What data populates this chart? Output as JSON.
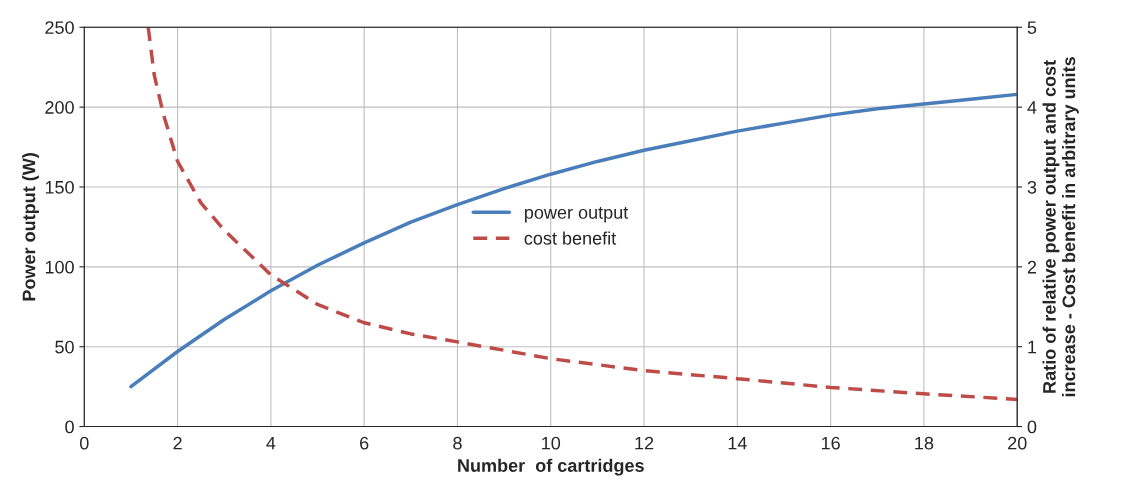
{
  "chart_data": {
    "type": "line",
    "xlabel": "Number  of cartridges",
    "ylabel": "Power output (W)",
    "y2label": "Ratio of relative power output and cost\nincrease - Cost benefit in arbitrary units",
    "xlim": [
      0,
      20
    ],
    "xticks": [
      0,
      2,
      4,
      6,
      8,
      10,
      12,
      14,
      16,
      18,
      20
    ],
    "ylim": [
      0,
      250
    ],
    "yticks": [
      0,
      50,
      100,
      150,
      200,
      250
    ],
    "y2lim": [
      0,
      5
    ],
    "y2ticks": [
      0,
      1,
      2,
      3,
      4,
      5
    ],
    "grid": true,
    "legend": "center",
    "marker": "none",
    "series": [
      {
        "name": "power output",
        "color": "#4a7ebb",
        "line_style": "solid",
        "x": [
          1,
          2,
          3,
          4,
          5,
          6,
          7,
          8,
          9,
          10,
          11,
          12,
          13,
          14,
          15,
          16,
          17,
          18,
          19,
          20
        ],
        "values": [
          25,
          47,
          67,
          85,
          101,
          115,
          128,
          139,
          149,
          158,
          166,
          173,
          179,
          185,
          190,
          195,
          199,
          202,
          205,
          208
        ]
      },
      {
        "name": "cost benefit",
        "color": "#be4b48",
        "line_style": "dashed",
        "axis": "y2",
        "x": [
          1.37,
          1.5,
          1.7,
          2,
          2.5,
          3,
          4,
          5,
          6,
          7,
          8,
          10,
          12,
          14,
          16,
          18,
          20
        ],
        "values": [
          5,
          4.4,
          3.9,
          3.32,
          2.8,
          2.46,
          1.9,
          1.53,
          1.3,
          1.16,
          1.06,
          0.85,
          0.7,
          0.6,
          0.49,
          0.41,
          0.34
        ]
      }
    ]
  }
}
